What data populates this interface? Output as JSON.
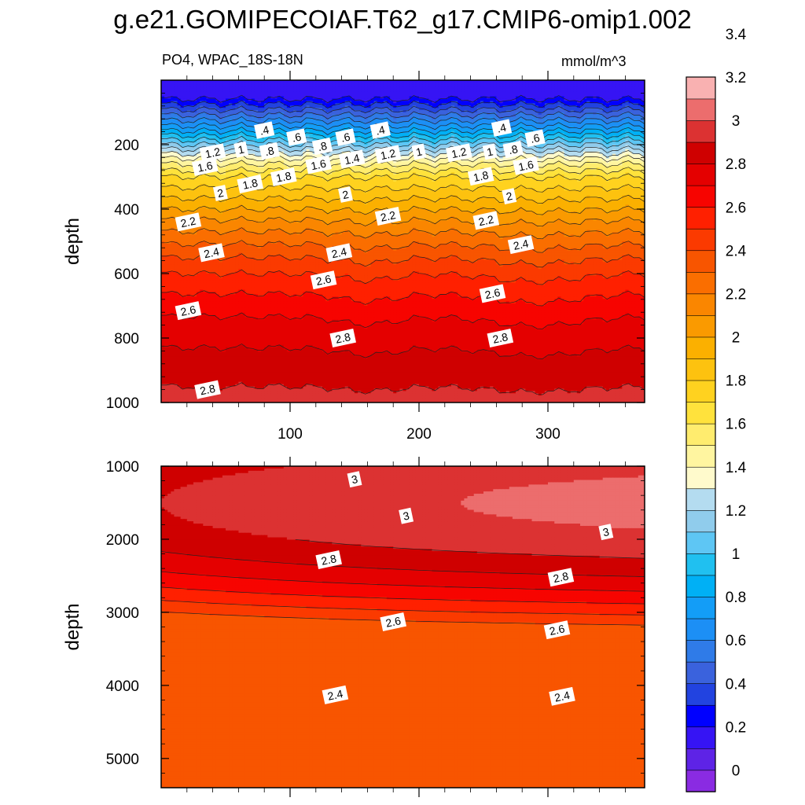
{
  "figure": {
    "title": "g.e21.GOMIPECOIAF.T62_g17.CMIP6-omip1.002",
    "subtitle_left": "PO4, WPAC_18S-18N",
    "units": "mmol/m^3"
  },
  "colors": {
    "levels": [
      "#8a2be2",
      "#5e23e6",
      "#3614f4",
      "#0000ff",
      "#2243e0",
      "#3a62dd",
      "#2f7be8",
      "#1c8ff5",
      "#139df7",
      "#00b0f5",
      "#20c0f0",
      "#5ec6f4",
      "#90ccec",
      "#b4dcf0",
      "#fffacc",
      "#fff5a0",
      "#ffec6e",
      "#ffe23c",
      "#ffd21f",
      "#fdc20f",
      "#fbb000",
      "#fa9a00",
      "#fa8600",
      "#fa6e00",
      "#f85500",
      "#fb3a00",
      "#ff2000",
      "#f70400",
      "#e40000",
      "#cf0000",
      "#dc3232",
      "#ec6d6d",
      "#f9b1b1"
    ],
    "line": "#222222"
  },
  "chart_data": [
    {
      "type": "contour",
      "name": "upper-panel",
      "title": "PO4, WPAC_18S-18N",
      "xlabel": "",
      "ylabel": "depth",
      "xlim": [
        0,
        375
      ],
      "ylim": [
        1000,
        0
      ],
      "xticks": [
        100,
        200,
        300
      ],
      "xtick_labels": [
        "100",
        "200",
        "300"
      ],
      "yticks": [
        200,
        400,
        600,
        800,
        1000
      ],
      "ytick_labels": [
        "200",
        "400",
        "600",
        "800",
        "1000"
      ],
      "contour_levels": [
        0.1,
        0.2,
        0.3,
        0.4,
        0.5,
        0.6,
        0.7,
        0.8,
        0.9,
        1.0,
        1.1,
        1.2,
        1.3,
        1.4,
        1.5,
        1.6,
        1.7,
        1.8,
        1.9,
        2.0,
        2.1,
        2.2,
        2.3,
        2.4,
        2.5,
        2.6,
        2.7,
        2.8,
        2.9,
        3.0
      ],
      "profile": {
        "depth": [
          0,
          50,
          100,
          150,
          200,
          250,
          300,
          350,
          400,
          450,
          500,
          550,
          600,
          650,
          700,
          750,
          800,
          850,
          900,
          950,
          1000
        ],
        "value": [
          0.1,
          0.15,
          0.45,
          0.75,
          1.1,
          1.45,
          1.7,
          1.85,
          2.0,
          2.15,
          2.28,
          2.4,
          2.5,
          2.58,
          2.66,
          2.72,
          2.77,
          2.82,
          2.86,
          2.9,
          2.92
        ]
      },
      "contour_labels": [
        {
          "text": ".4",
          "x": 80,
          "depth": 155
        },
        {
          "text": ".6",
          "x": 105,
          "depth": 177
        },
        {
          "text": ".8",
          "x": 84,
          "depth": 220
        },
        {
          "text": ".8",
          "x": 125,
          "depth": 205
        },
        {
          "text": ".6",
          "x": 143,
          "depth": 177
        },
        {
          "text": ".4",
          "x": 170,
          "depth": 155
        },
        {
          "text": "1.2",
          "x": 40,
          "depth": 225
        },
        {
          "text": "1",
          "x": 62,
          "depth": 215
        },
        {
          "text": "1.6",
          "x": 34,
          "depth": 268
        },
        {
          "text": "1.6",
          "x": 122,
          "depth": 262
        },
        {
          "text": "1.4",
          "x": 148,
          "depth": 245
        },
        {
          "text": "1.2",
          "x": 176,
          "depth": 230
        },
        {
          "text": "1",
          "x": 200,
          "depth": 222
        },
        {
          "text": "1.2",
          "x": 231,
          "depth": 225
        },
        {
          "text": "1",
          "x": 255,
          "depth": 222
        },
        {
          "text": ".8",
          "x": 273,
          "depth": 215
        },
        {
          "text": ".4",
          "x": 264,
          "depth": 148
        },
        {
          "text": ".6",
          "x": 290,
          "depth": 180
        },
        {
          "text": "1.6",
          "x": 283,
          "depth": 265
        },
        {
          "text": "1.8",
          "x": 69,
          "depth": 322
        },
        {
          "text": "1.8",
          "x": 95,
          "depth": 300
        },
        {
          "text": "1.8",
          "x": 248,
          "depth": 298
        },
        {
          "text": "2",
          "x": 46,
          "depth": 350
        },
        {
          "text": "2",
          "x": 143,
          "depth": 355
        },
        {
          "text": "2",
          "x": 270,
          "depth": 360
        },
        {
          "text": "2.2",
          "x": 21,
          "depth": 440
        },
        {
          "text": "2.2",
          "x": 176,
          "depth": 422
        },
        {
          "text": "2.2",
          "x": 252,
          "depth": 435
        },
        {
          "text": "2.4",
          "x": 39,
          "depth": 535
        },
        {
          "text": "2.4",
          "x": 138,
          "depth": 535
        },
        {
          "text": "2.4",
          "x": 279,
          "depth": 510
        },
        {
          "text": "2.6",
          "x": 126,
          "depth": 620
        },
        {
          "text": "2.6",
          "x": 21,
          "depth": 715
        },
        {
          "text": "2.6",
          "x": 257,
          "depth": 662
        },
        {
          "text": "2.8",
          "x": 141,
          "depth": 800
        },
        {
          "text": "2.8",
          "x": 263,
          "depth": 800
        },
        {
          "text": "2.8",
          "x": 36,
          "depth": 960
        }
      ]
    },
    {
      "type": "contour",
      "name": "lower-panel",
      "xlabel": "",
      "ylabel": "depth",
      "xlim": [
        0,
        375
      ],
      "ylim": [
        5400,
        1000
      ],
      "xticks": [
        100,
        200,
        300
      ],
      "xtick_labels": [],
      "yticks": [
        1000,
        2000,
        3000,
        4000,
        5000
      ],
      "ytick_labels": [
        "1000",
        "2000",
        "3000",
        "4000",
        "5000"
      ],
      "contour_levels": [
        2.3,
        2.4,
        2.5,
        2.6,
        2.7,
        2.8,
        2.9,
        3.0
      ],
      "contour_labels": [
        {
          "text": "3",
          "x": 150,
          "depth": 1180
        },
        {
          "text": "3",
          "x": 190,
          "depth": 1680
        },
        {
          "text": "3",
          "x": 345,
          "depth": 1900
        },
        {
          "text": "2.8",
          "x": 130,
          "depth": 2280
        },
        {
          "text": "2.8",
          "x": 310,
          "depth": 2520
        },
        {
          "text": "2.6",
          "x": 180,
          "depth": 3130
        },
        {
          "text": "2.6",
          "x": 307,
          "depth": 3240
        },
        {
          "text": "2.4",
          "x": 135,
          "depth": 4130
        },
        {
          "text": "2.4",
          "x": 311,
          "depth": 4150
        }
      ]
    }
  ],
  "colorbar": {
    "labels": [
      "0",
      "0.2",
      "0.4",
      "0.6",
      "0.8",
      "1",
      "1.2",
      "1.4",
      "1.6",
      "1.8",
      "2",
      "2.2",
      "2.4",
      "2.6",
      "2.8",
      "3",
      "3.2",
      "3.4"
    ]
  }
}
